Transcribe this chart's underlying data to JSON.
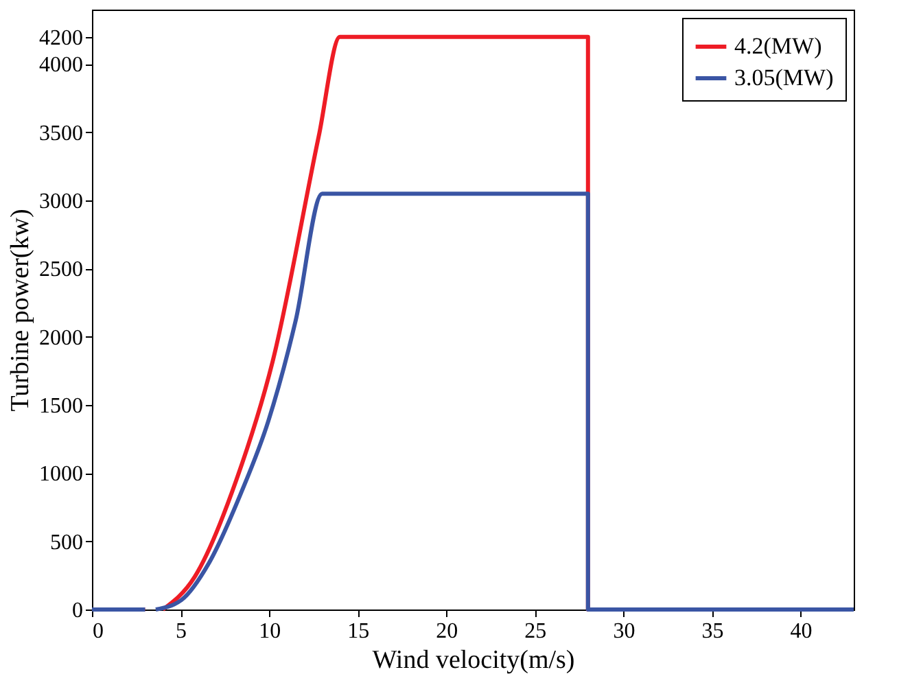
{
  "chart_data": {
    "type": "line",
    "xlabel": "Wind velocity(m/s)",
    "ylabel": "Turbine power(kw)",
    "xlim": [
      0,
      43
    ],
    "xticks": [
      0,
      5,
      10,
      15,
      20,
      25,
      30,
      35,
      40
    ],
    "ylim": [
      0,
      4400
    ],
    "yticks": [
      0,
      500,
      1000,
      1500,
      2000,
      2500,
      3000,
      3500,
      4000,
      4200
    ],
    "grid": false,
    "legend": "top right",
    "marker": "none",
    "line_style": "solid",
    "series": [
      {
        "name": "4.2(MW)",
        "color": "#ee1c25",
        "x": [
          0,
          3,
          3.5,
          4.0,
          5.8,
          8.15,
          10.2,
          12.8,
          14,
          28,
          28,
          43
        ],
        "values": [
          0,
          0,
          null,
          0,
          240,
          950,
          1820,
          3470,
          4200,
          4200,
          0,
          0
        ]
      },
      {
        "name": "3.05(MW)",
        "color": "#3a55a4",
        "x": [
          0,
          3,
          3.3,
          3.6,
          5.05,
          6.6,
          8.4,
          9.95,
          11.5,
          13,
          28,
          28,
          43
        ],
        "values": [
          0,
          0,
          null,
          0,
          70,
          340,
          850,
          1380,
          2120,
          3050,
          3050,
          0,
          0
        ]
      }
    ]
  }
}
